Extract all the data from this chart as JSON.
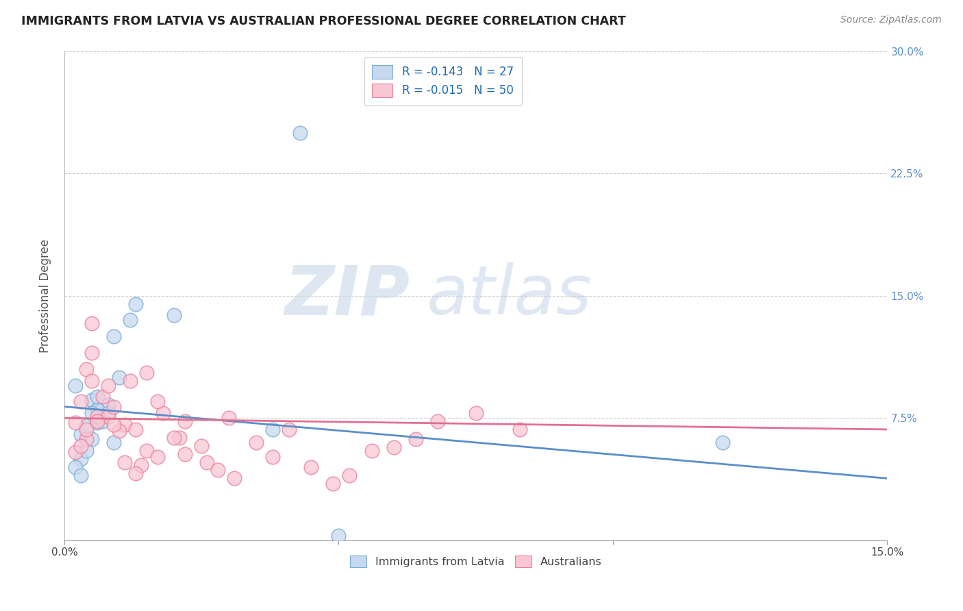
{
  "title": "IMMIGRANTS FROM LATVIA VS AUSTRALIAN PROFESSIONAL DEGREE CORRELATION CHART",
  "source": "Source: ZipAtlas.com",
  "ylabel": "Professional Degree",
  "xlim": [
    0.0,
    0.15
  ],
  "ylim": [
    0.0,
    0.3
  ],
  "yticks": [
    0.075,
    0.15,
    0.225,
    0.3
  ],
  "ytick_labels_right": [
    "7.5%",
    "15.0%",
    "22.5%",
    "30.0%"
  ],
  "xtick_positions": [
    0.0,
    0.05,
    0.1,
    0.15
  ],
  "xtick_labels": [
    "0.0%",
    "",
    "",
    "15.0%"
  ],
  "legend_label_blue": "R = -0.143   N = 27",
  "legend_label_pink": "R = -0.015   N = 50",
  "legend_bottom_blue": "Immigrants from Latvia",
  "legend_bottom_pink": "Australians",
  "blue_fill": "#c6d9f0",
  "blue_edge": "#7badd4",
  "pink_fill": "#f9c6d4",
  "pink_edge": "#e8829e",
  "blue_line_color": "#5b8ec9",
  "pink_line_color": "#e07090",
  "watermark_zip": "ZIP",
  "watermark_atlas": "atlas",
  "blue_scatter_x": [
    0.006,
    0.003,
    0.005,
    0.002,
    0.004,
    0.006,
    0.008,
    0.009,
    0.003,
    0.005,
    0.007,
    0.004,
    0.006,
    0.008,
    0.002,
    0.003,
    0.01,
    0.012,
    0.013,
    0.009,
    0.006,
    0.005,
    0.02,
    0.038,
    0.05,
    0.12,
    0.043
  ],
  "blue_scatter_y": [
    0.08,
    0.065,
    0.062,
    0.095,
    0.07,
    0.072,
    0.083,
    0.06,
    0.05,
    0.086,
    0.073,
    0.055,
    0.08,
    0.078,
    0.045,
    0.04,
    0.1,
    0.135,
    0.145,
    0.125,
    0.088,
    0.078,
    0.138,
    0.068,
    0.003,
    0.06,
    0.25
  ],
  "pink_scatter_x": [
    0.002,
    0.004,
    0.005,
    0.003,
    0.004,
    0.006,
    0.008,
    0.002,
    0.004,
    0.005,
    0.007,
    0.003,
    0.005,
    0.006,
    0.008,
    0.009,
    0.011,
    0.013,
    0.015,
    0.018,
    0.021,
    0.01,
    0.012,
    0.014,
    0.017,
    0.022,
    0.026,
    0.03,
    0.009,
    0.011,
    0.013,
    0.015,
    0.017,
    0.02,
    0.022,
    0.025,
    0.028,
    0.031,
    0.035,
    0.038,
    0.041,
    0.045,
    0.049,
    0.052,
    0.056,
    0.06,
    0.064,
    0.068,
    0.075,
    0.083
  ],
  "pink_scatter_y": [
    0.072,
    0.062,
    0.115,
    0.085,
    0.105,
    0.076,
    0.076,
    0.054,
    0.068,
    0.098,
    0.088,
    0.058,
    0.133,
    0.073,
    0.095,
    0.082,
    0.071,
    0.068,
    0.103,
    0.078,
    0.063,
    0.067,
    0.098,
    0.046,
    0.085,
    0.053,
    0.048,
    0.075,
    0.071,
    0.048,
    0.041,
    0.055,
    0.051,
    0.063,
    0.073,
    0.058,
    0.043,
    0.038,
    0.06,
    0.051,
    0.068,
    0.045,
    0.035,
    0.04,
    0.055,
    0.057,
    0.062,
    0.073,
    0.078,
    0.068
  ],
  "blue_trend_x": [
    0.0,
    0.15
  ],
  "blue_trend_y": [
    0.082,
    0.038
  ],
  "pink_trend_x": [
    0.0,
    0.15
  ],
  "pink_trend_y": [
    0.075,
    0.068
  ]
}
